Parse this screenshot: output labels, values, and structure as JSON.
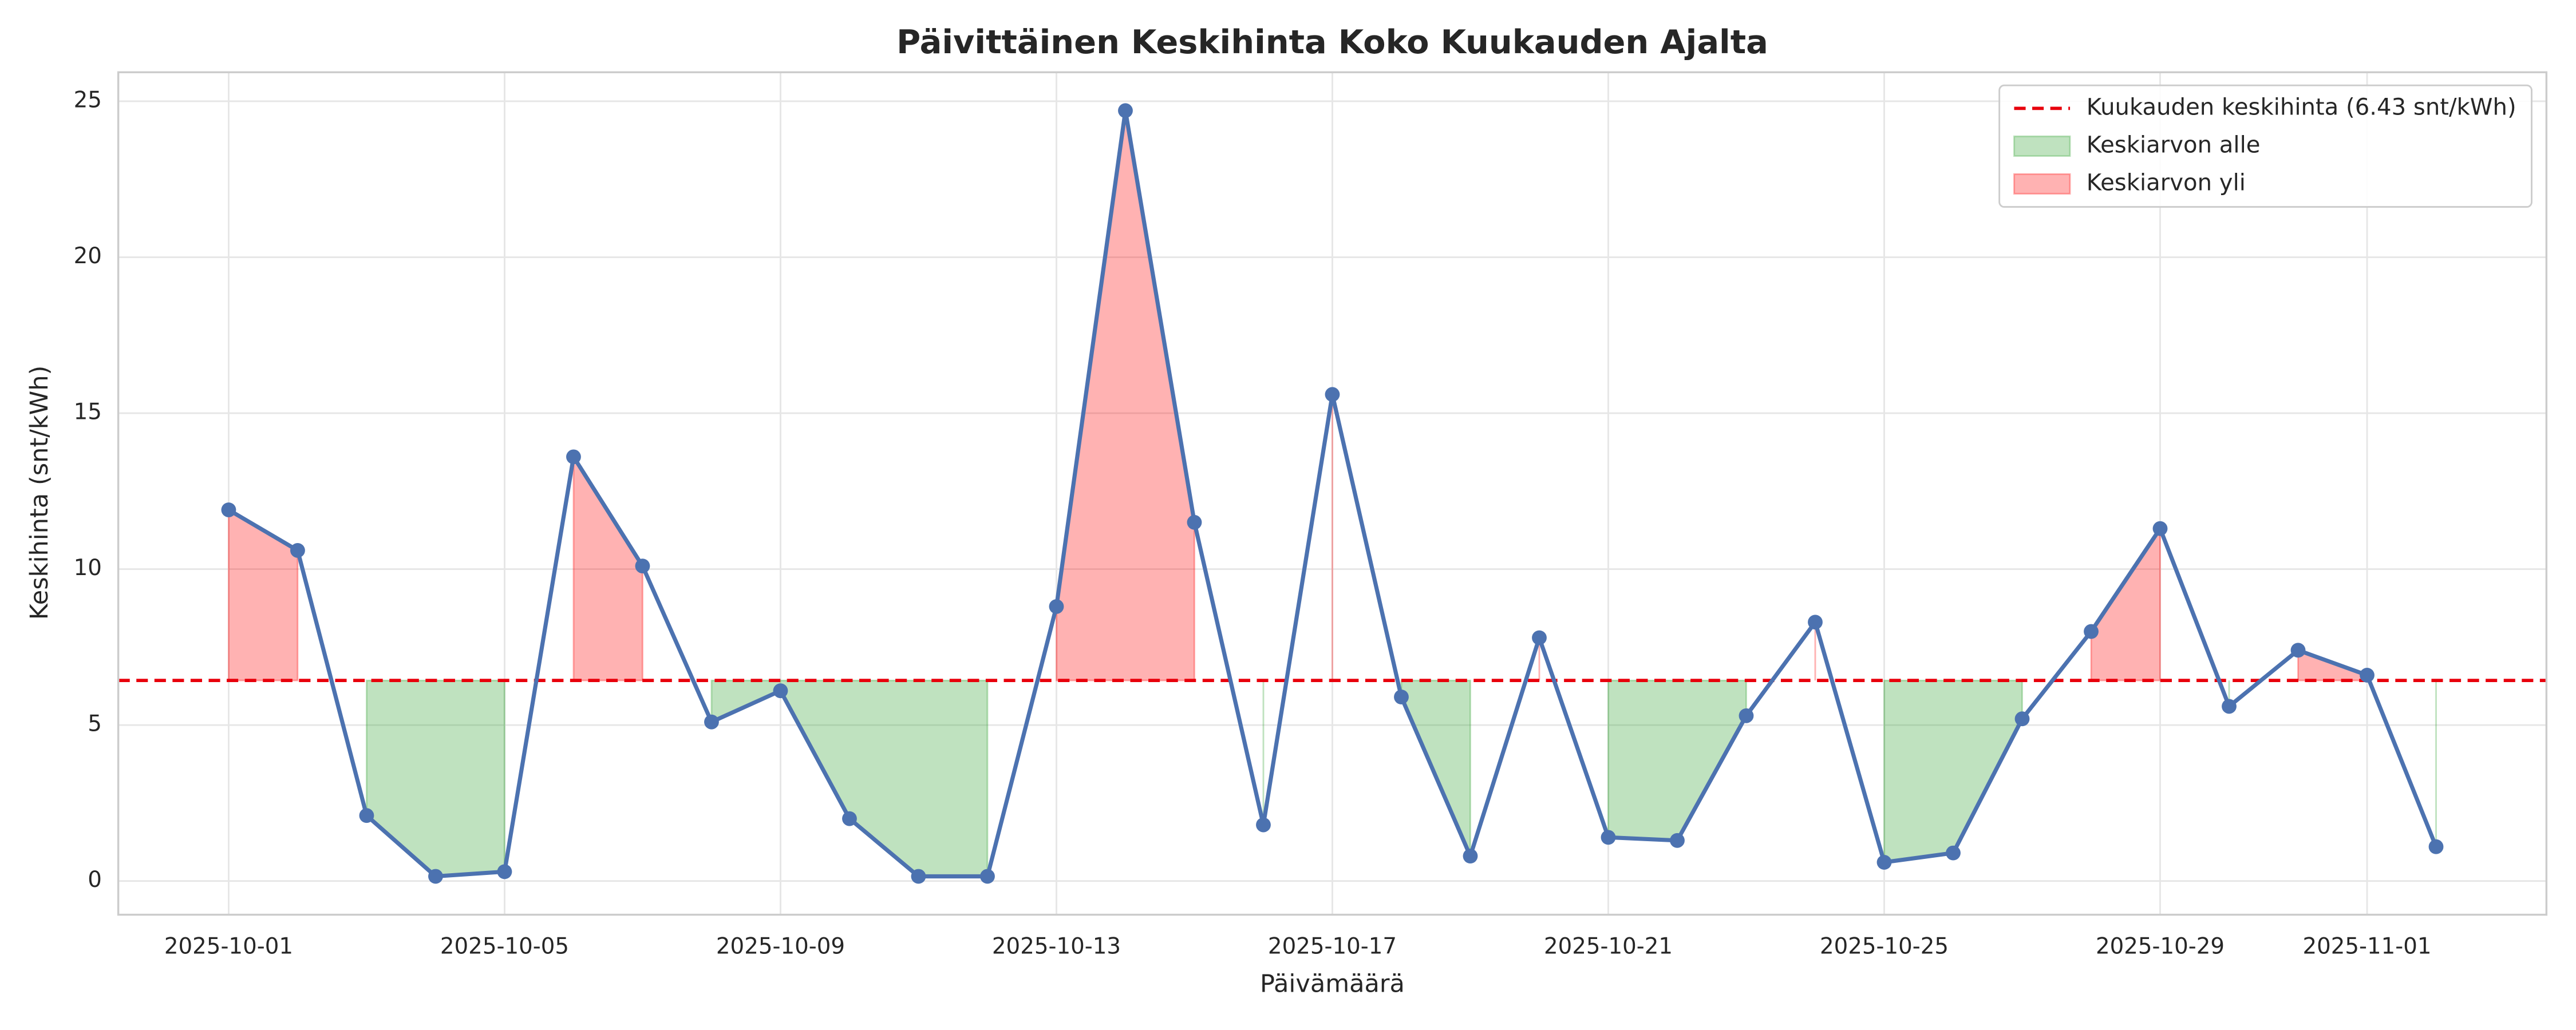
{
  "chart_data": {
    "type": "line",
    "title": "Päivittäinen Keskihinta Koko Kuukauden Ajalta",
    "xlabel": "Päivämäärä",
    "ylabel": "Keskihinta (snt/kWh)",
    "x": [
      "2025-10-01",
      "2025-10-02",
      "2025-10-03",
      "2025-10-04",
      "2025-10-05",
      "2025-10-06",
      "2025-10-07",
      "2025-10-08",
      "2025-10-09",
      "2025-10-10",
      "2025-10-11",
      "2025-10-12",
      "2025-10-13",
      "2025-10-14",
      "2025-10-15",
      "2025-10-16",
      "2025-10-17",
      "2025-10-18",
      "2025-10-19",
      "2025-10-20",
      "2025-10-21",
      "2025-10-22",
      "2025-10-23",
      "2025-10-24",
      "2025-10-25",
      "2025-10-26",
      "2025-10-27",
      "2025-10-28",
      "2025-10-29",
      "2025-10-30",
      "2025-10-31",
      "2025-11-01",
      "2025-11-02"
    ],
    "series": [
      {
        "color": "#4c72b0",
        "values": [
          11.9,
          10.6,
          2.1,
          0.15,
          0.3,
          13.6,
          10.1,
          5.1,
          6.1,
          2.0,
          0.15,
          0.15,
          8.8,
          24.7,
          11.5,
          1.8,
          15.6,
          5.9,
          0.8,
          7.8,
          1.4,
          1.3,
          5.3,
          8.3,
          0.6,
          0.9,
          5.2,
          8.0,
          11.3,
          5.6,
          7.4,
          6.6,
          1.1
        ]
      }
    ],
    "mean": {
      "value": 6.43,
      "label": "Kuukauden keskihinta (6.43 snt/kWh)",
      "color": "#e8000b"
    },
    "below": {
      "label": "Keskiarvon alle",
      "color": "#2ca02c"
    },
    "above": {
      "label": "Keskiarvon yli",
      "color": "#ff0000"
    },
    "xlim": [
      "2025-09-29T09:36",
      "2025-11-03T14:24"
    ],
    "xticks": [
      "2025-10-01",
      "2025-10-05",
      "2025-10-09",
      "2025-10-13",
      "2025-10-17",
      "2025-10-21",
      "2025-10-25",
      "2025-10-29",
      "2025-11-01"
    ],
    "ylim": [
      -1.08,
      25.93
    ],
    "yticks": [
      0,
      5,
      10,
      15,
      20,
      25
    ],
    "grid": true,
    "legend": "upper-right"
  }
}
